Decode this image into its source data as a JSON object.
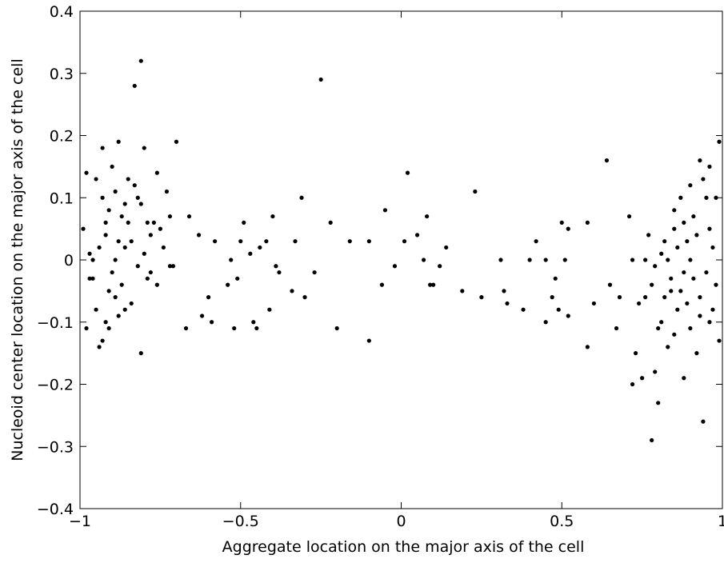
{
  "chart_data": {
    "type": "scatter",
    "xlabel": "Aggregate location on the major axis of the cell",
    "ylabel": "Nucleoid center location on the major axis of the cell",
    "xlim": [
      -1,
      1
    ],
    "ylim": [
      -0.4,
      0.4
    ],
    "xticks": [
      {
        "value": -1,
        "label": "−1"
      },
      {
        "value": -0.5,
        "label": "−0.5"
      },
      0,
      0.5,
      1
    ],
    "yticks": [
      {
        "value": -0.4,
        "label": "−0.4"
      },
      {
        "value": -0.3,
        "label": "−0.3"
      },
      {
        "value": -0.2,
        "label": "−0.2"
      },
      {
        "value": -0.1,
        "label": "−0.1"
      },
      0,
      0.1,
      0.2,
      0.3,
      0.4
    ],
    "color": "#000000",
    "x": [
      -0.98,
      -0.99,
      -0.97,
      -0.98,
      -0.96,
      -0.95,
      -0.94,
      -0.93,
      -0.93,
      -0.92,
      -0.91,
      -0.9,
      -0.89,
      -0.88,
      -0.87,
      -0.86,
      -0.85,
      -0.84,
      -0.83,
      -0.82,
      -0.81,
      -0.81,
      -0.8,
      -0.79,
      -0.78,
      -0.76,
      -0.75,
      -0.73,
      -0.72,
      -0.7,
      -0.97,
      -0.96,
      -0.95,
      -0.94,
      -0.93,
      -0.92,
      -0.91,
      -0.9,
      -0.89,
      -0.88,
      -0.87,
      -0.86,
      -0.85,
      -0.84,
      -0.83,
      -0.82,
      -0.81,
      -0.8,
      -0.79,
      -0.78,
      -0.77,
      -0.76,
      -0.74,
      -0.72,
      -0.71,
      -0.92,
      -0.91,
      -0.89,
      -0.88,
      -0.86,
      -0.67,
      -0.66,
      -0.63,
      -0.62,
      -0.6,
      -0.59,
      -0.58,
      -0.54,
      -0.53,
      -0.52,
      -0.51,
      -0.5,
      -0.49,
      -0.47,
      -0.46,
      -0.45,
      -0.44,
      -0.42,
      -0.41,
      -0.4,
      -0.39,
      -0.38,
      -0.34,
      -0.33,
      -0.31,
      -0.3,
      -0.27,
      -0.25,
      -0.22,
      -0.2,
      -0.16,
      -0.1,
      -0.1,
      -0.06,
      -0.05,
      -0.02,
      0.01,
      0.02,
      0.05,
      0.07,
      0.08,
      0.09,
      0.1,
      0.12,
      0.14,
      0.19,
      0.23,
      0.25,
      0.31,
      0.32,
      0.33,
      0.38,
      0.4,
      0.42,
      0.45,
      0.45,
      0.47,
      0.48,
      0.49,
      0.5,
      0.51,
      0.52,
      0.52,
      0.58,
      0.58,
      0.6,
      0.64,
      0.65,
      0.67,
      0.68,
      0.71,
      0.72,
      0.73,
      0.75,
      0.76,
      0.77,
      0.78,
      0.79,
      0.8,
      0.81,
      0.82,
      0.83,
      0.84,
      0.85,
      0.86,
      0.87,
      0.88,
      0.89,
      0.9,
      0.91,
      0.92,
      0.93,
      0.94,
      0.95,
      0.96,
      0.97,
      0.98,
      0.99,
      0.99,
      0.72,
      0.74,
      0.76,
      0.78,
      0.79,
      0.8,
      0.81,
      0.82,
      0.83,
      0.84,
      0.85,
      0.86,
      0.87,
      0.88,
      0.89,
      0.9,
      0.91,
      0.92,
      0.93,
      0.94,
      0.95,
      0.96,
      0.97,
      0.98,
      0.85,
      0.88,
      0.9,
      0.93,
      0.96
    ],
    "y": [
      0.14,
      0.05,
      0.01,
      -0.11,
      -0.03,
      0.13,
      -0.14,
      0.1,
      0.18,
      0.04,
      -0.05,
      0.15,
      -0.06,
      0.19,
      0.07,
      -0.08,
      0.13,
      0.03,
      0.28,
      0.1,
      0.32,
      -0.15,
      0.18,
      0.06,
      -0.02,
      0.14,
      0.05,
      0.11,
      0.07,
      0.19,
      -0.03,
      0,
      -0.08,
      0.02,
      -0.13,
      -0.1,
      0.08,
      -0.02,
      0,
      0.03,
      -0.04,
      0.09,
      0.06,
      -0.07,
      0.12,
      -0.01,
      0.09,
      0.01,
      -0.03,
      0.04,
      0.06,
      -0.04,
      0.02,
      -0.01,
      -0.01,
      0.06,
      -0.11,
      0.11,
      -0.09,
      0.02,
      -0.11,
      0.07,
      0.04,
      -0.09,
      -0.06,
      -0.1,
      0.03,
      -0.04,
      0,
      -0.11,
      -0.03,
      0.03,
      0.06,
      0.01,
      -0.1,
      -0.11,
      0.02,
      0.03,
      -0.08,
      0.07,
      -0.01,
      -0.02,
      -0.05,
      0.03,
      0.1,
      -0.06,
      -0.02,
      0.29,
      0.06,
      -0.11,
      0.03,
      -0.13,
      0.03,
      -0.04,
      0.08,
      -0.01,
      0.03,
      0.14,
      0.04,
      0,
      0.07,
      -0.04,
      -0.04,
      -0.01,
      0.02,
      -0.05,
      0.11,
      -0.06,
      0,
      -0.05,
      -0.07,
      -0.08,
      0,
      0.03,
      0,
      -0.1,
      -0.06,
      -0.03,
      -0.08,
      0.06,
      0,
      0.05,
      -0.09,
      0.06,
      -0.14,
      -0.07,
      0.16,
      -0.04,
      -0.11,
      -0.06,
      0.07,
      -0.2,
      -0.15,
      -0.19,
      -0.06,
      0.04,
      -0.29,
      -0.18,
      -0.23,
      -0.1,
      0.03,
      -0.14,
      -0.05,
      0.05,
      -0.08,
      0.1,
      -0.02,
      0.03,
      -0.11,
      0.07,
      -0.15,
      0.16,
      -0.26,
      0.1,
      -0.1,
      0.02,
      -0.04,
      0.19,
      -0.13,
      0,
      -0.07,
      0,
      -0.04,
      -0.01,
      -0.11,
      0.01,
      -0.06,
      0,
      -0.03,
      -0.12,
      0.02,
      -0.05,
      0.06,
      -0.07,
      0,
      -0.03,
      0.04,
      -0.06,
      0.13,
      -0.02,
      0.05,
      -0.08,
      0.1,
      0.08,
      -0.19,
      0.12,
      -0.09,
      0.15
    ]
  }
}
